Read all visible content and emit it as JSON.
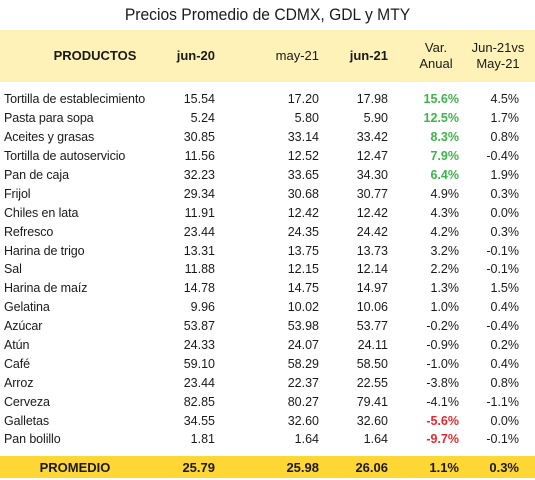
{
  "title": "Precios Promedio de CDMX, GDL y MTY",
  "headers": {
    "productos": "PRODUCTOS",
    "jun20": "jun-20",
    "may21": "may-21",
    "jun21": "jun-21",
    "var_line1": "Var.",
    "var_line2": "Anual",
    "vs_line1": "Jun-21vs",
    "vs_line2": "May-21"
  },
  "colors": {
    "header_bg": "#fff2b8",
    "footer_bg": "#ffd735",
    "positive": "#3db54a",
    "negative": "#e8282d"
  },
  "rows": [
    {
      "name": "Tortilla de establecimiento",
      "jun20": "15.54",
      "may21": "17.20",
      "jun21": "17.98",
      "var": "15.6%",
      "vs": "4.5%",
      "hl": "pos"
    },
    {
      "name": "Pasta para sopa",
      "jun20": "5.24",
      "may21": "5.80",
      "jun21": "5.90",
      "var": "12.5%",
      "vs": "1.7%",
      "hl": "pos"
    },
    {
      "name": "Aceites y grasas",
      "jun20": "30.85",
      "may21": "33.14",
      "jun21": "33.42",
      "var": "8.3%",
      "vs": "0.8%",
      "hl": "pos"
    },
    {
      "name": "Tortilla de autoservicio",
      "jun20": "11.56",
      "may21": "12.52",
      "jun21": "12.47",
      "var": "7.9%",
      "vs": "-0.4%",
      "hl": "pos"
    },
    {
      "name": "Pan de caja",
      "jun20": "32.23",
      "may21": "33.65",
      "jun21": "34.30",
      "var": "6.4%",
      "vs": "1.9%",
      "hl": "pos"
    },
    {
      "name": "Frijol",
      "jun20": "29.34",
      "may21": "30.68",
      "jun21": "30.77",
      "var": "4.9%",
      "vs": "0.3%",
      "hl": ""
    },
    {
      "name": "Chiles en lata",
      "jun20": "11.91",
      "may21": "12.42",
      "jun21": "12.42",
      "var": "4.3%",
      "vs": "0.0%",
      "hl": ""
    },
    {
      "name": "Refresco",
      "jun20": "23.44",
      "may21": "24.35",
      "jun21": "24.42",
      "var": "4.2%",
      "vs": "0.3%",
      "hl": ""
    },
    {
      "name": "Harina de trigo",
      "jun20": "13.31",
      "may21": "13.75",
      "jun21": "13.73",
      "var": "3.2%",
      "vs": "-0.1%",
      "hl": ""
    },
    {
      "name": "Sal",
      "jun20": "11.88",
      "may21": "12.15",
      "jun21": "12.14",
      "var": "2.2%",
      "vs": "-0.1%",
      "hl": ""
    },
    {
      "name": "Harina de maíz",
      "jun20": "14.78",
      "may21": "14.75",
      "jun21": "14.97",
      "var": "1.3%",
      "vs": "1.5%",
      "hl": ""
    },
    {
      "name": "Gelatina",
      "jun20": "9.96",
      "may21": "10.02",
      "jun21": "10.06",
      "var": "1.0%",
      "vs": "0.4%",
      "hl": ""
    },
    {
      "name": "Azúcar",
      "jun20": "53.87",
      "may21": "53.98",
      "jun21": "53.77",
      "var": "-0.2%",
      "vs": "-0.4%",
      "hl": ""
    },
    {
      "name": "Atún",
      "jun20": "24.33",
      "may21": "24.07",
      "jun21": "24.11",
      "var": "-0.9%",
      "vs": "0.2%",
      "hl": ""
    },
    {
      "name": "Café",
      "jun20": "59.10",
      "may21": "58.29",
      "jun21": "58.50",
      "var": "-1.0%",
      "vs": "0.4%",
      "hl": ""
    },
    {
      "name": "Arroz",
      "jun20": "23.44",
      "may21": "22.37",
      "jun21": "22.55",
      "var": "-3.8%",
      "vs": "0.8%",
      "hl": ""
    },
    {
      "name": "Cerveza",
      "jun20": "82.85",
      "may21": "80.27",
      "jun21": "79.41",
      "var": "-4.1%",
      "vs": "-1.1%",
      "hl": ""
    },
    {
      "name": "Galletas",
      "jun20": "34.55",
      "may21": "32.60",
      "jun21": "32.60",
      "var": "-5.6%",
      "vs": "0.0%",
      "hl": "neg"
    },
    {
      "name": "Pan bolillo",
      "jun20": "1.81",
      "may21": "1.64",
      "jun21": "1.64",
      "var": "-9.7%",
      "vs": "-0.1%",
      "hl": "neg"
    }
  ],
  "footer": {
    "label": "PROMEDIO",
    "jun20": "25.79",
    "may21": "25.98",
    "jun21": "26.06",
    "var": "1.1%",
    "vs": "0.3%"
  }
}
